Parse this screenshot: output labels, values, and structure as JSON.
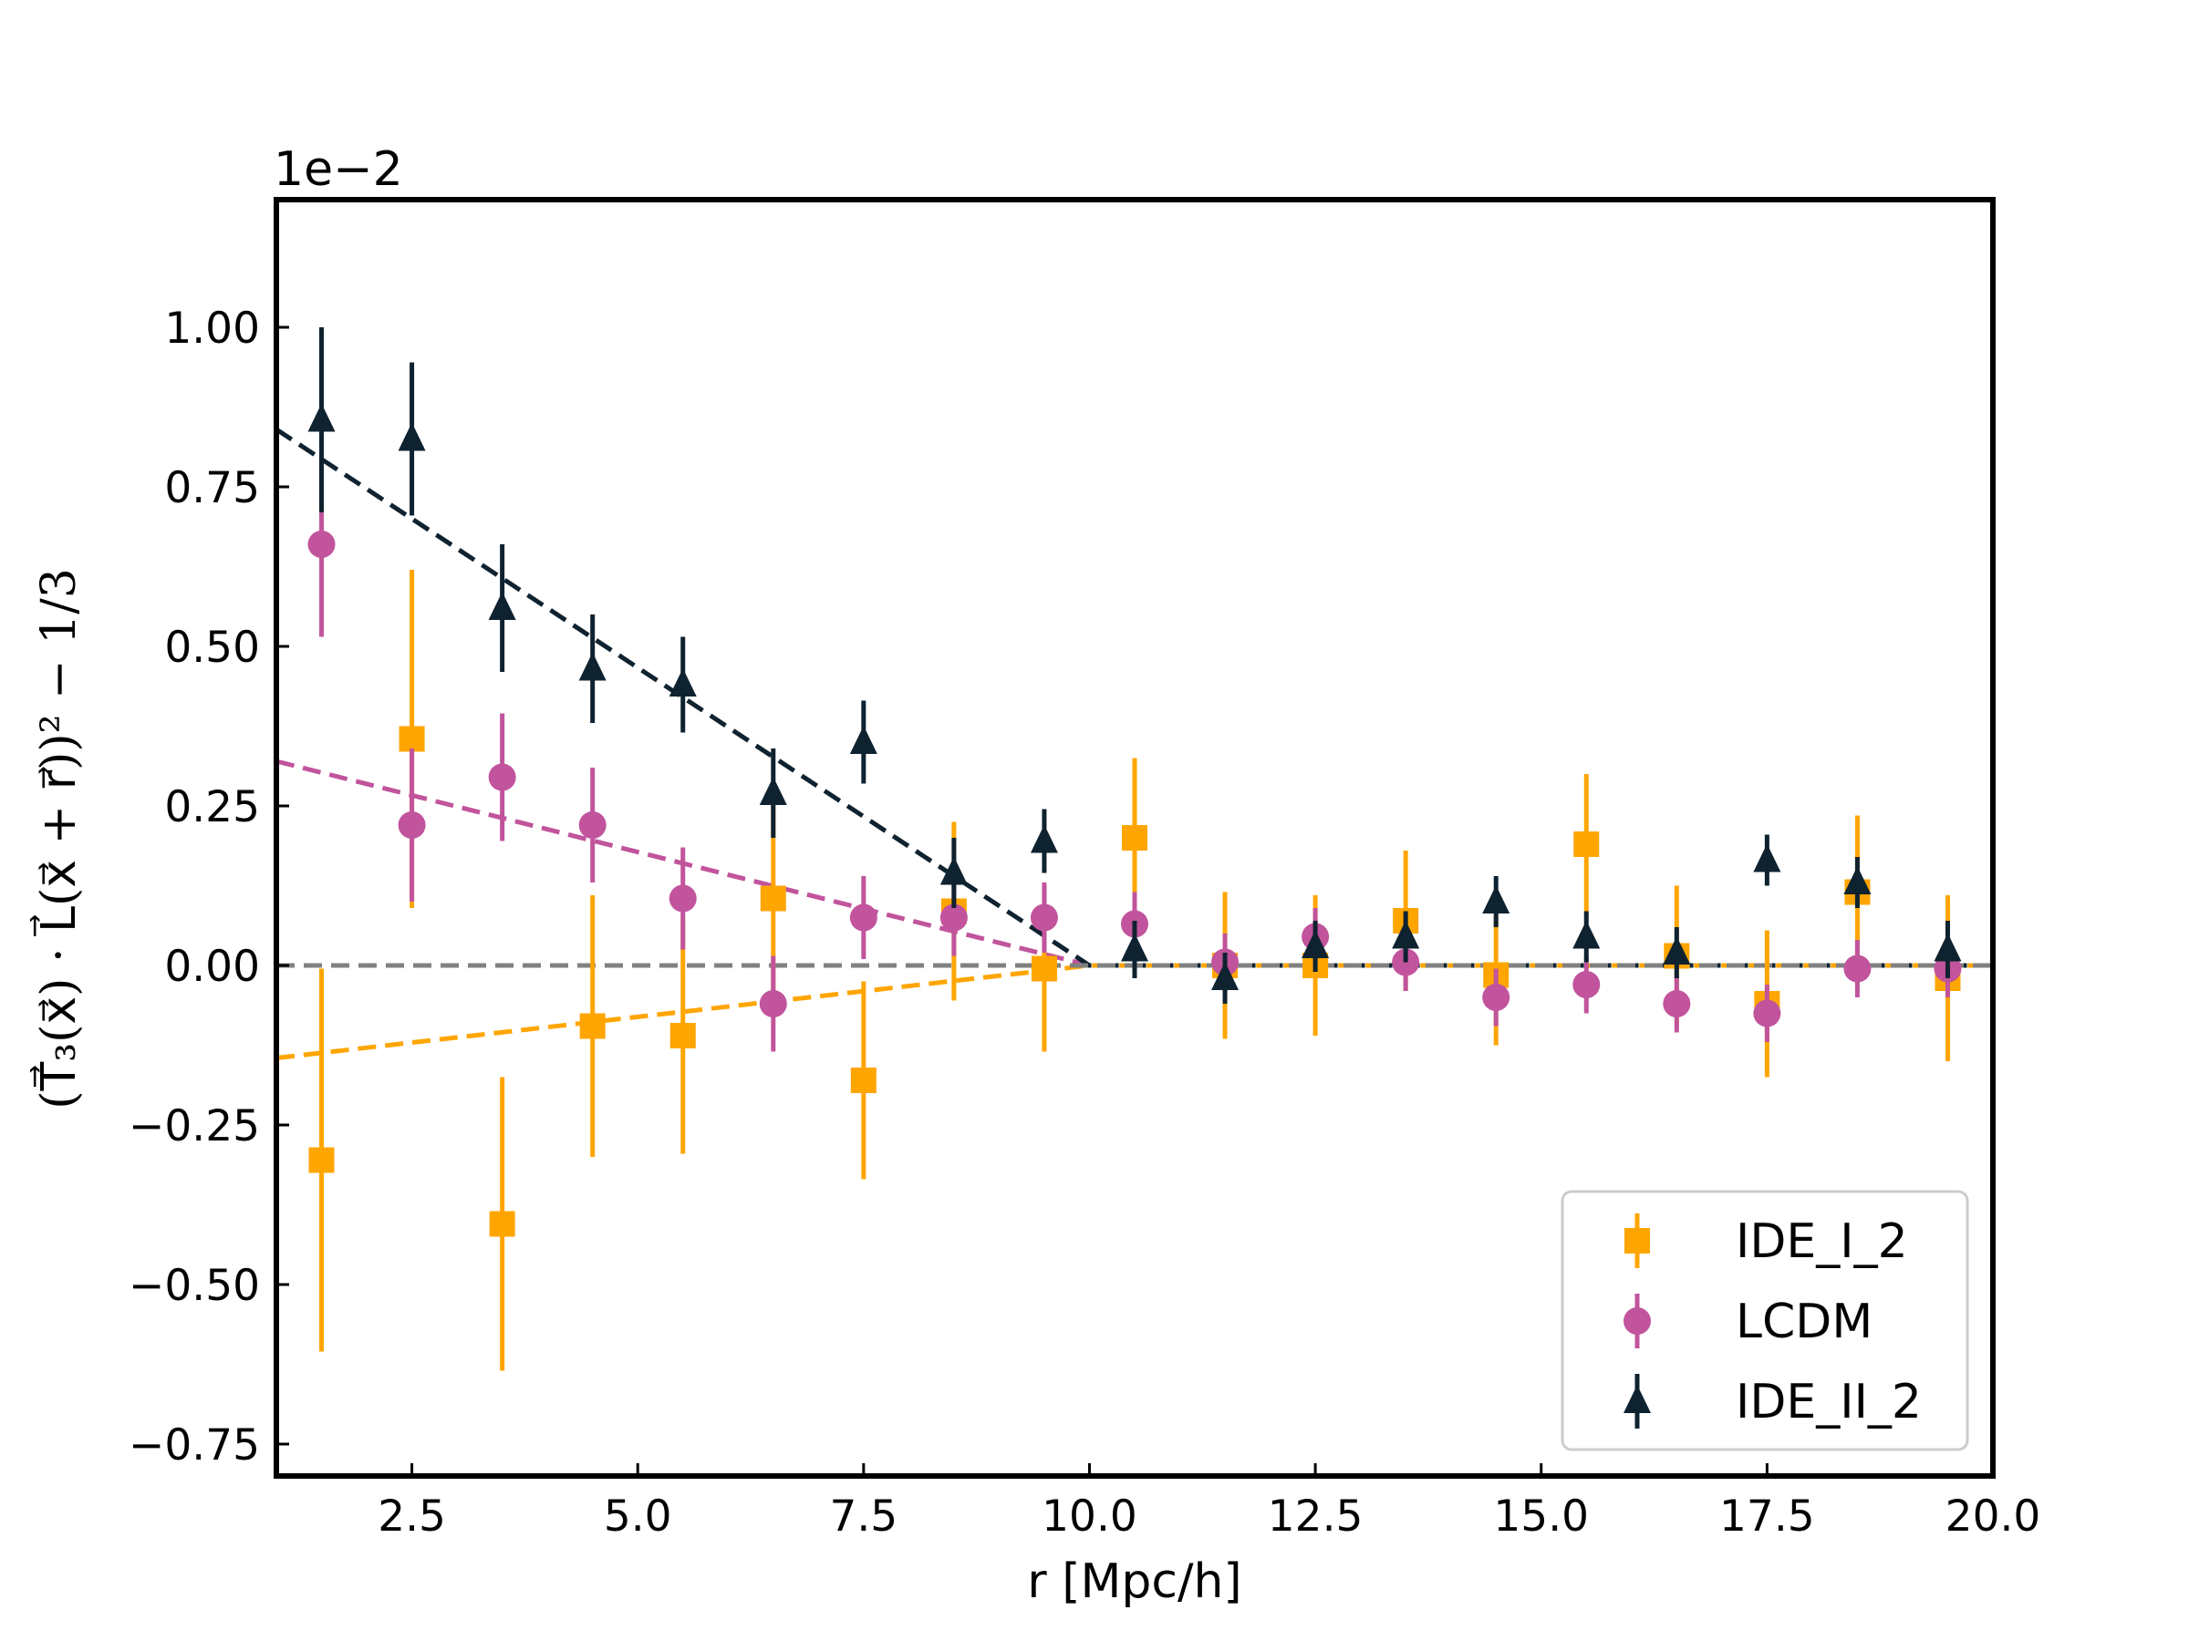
{
  "chart_data": {
    "type": "scatter",
    "title": "",
    "xlabel": "r [Mpc/h]",
    "ylabel": "(T⃗₃(x⃗) · L⃗(x⃗ + r⃗))² − 1/3",
    "y_offset_label": "1e−2",
    "xlim": [
      1.0,
      20.0
    ],
    "ylim": [
      -0.8,
      1.2
    ],
    "xticks": [
      2.5,
      5.0,
      7.5,
      10.0,
      12.5,
      15.0,
      17.5,
      20.0
    ],
    "xtick_labels": [
      "2.5",
      "5.0",
      "7.5",
      "10.0",
      "12.5",
      "15.0",
      "17.5",
      "20.0"
    ],
    "yticks": [
      -0.75,
      -0.5,
      -0.25,
      0.0,
      0.25,
      0.5,
      0.75,
      1.0
    ],
    "ytick_labels": [
      "−0.75",
      "−0.50",
      "−0.25",
      "0.00",
      "0.25",
      "0.50",
      "0.75",
      "1.00"
    ],
    "legend_position": "lower-right",
    "x": [
      1.5,
      2.5,
      3.5,
      4.5,
      5.5,
      6.5,
      7.5,
      8.5,
      9.5,
      10.5,
      11.5,
      12.5,
      13.5,
      14.5,
      15.5,
      16.5,
      17.5,
      18.5,
      19.5
    ],
    "series": [
      {
        "name": "IDE_I_2",
        "marker": "square",
        "color": "#ffa500",
        "values": [
          -0.305,
          0.355,
          -0.405,
          -0.095,
          -0.11,
          0.105,
          -0.18,
          0.085,
          -0.005,
          0.2,
          0.0,
          0.0,
          0.07,
          -0.015,
          0.19,
          0.015,
          -0.06,
          0.115,
          -0.02
        ],
        "errors": [
          0.3,
          0.265,
          0.23,
          0.205,
          0.185,
          0.155,
          0.155,
          0.14,
          0.13,
          0.125,
          0.115,
          0.11,
          0.11,
          0.11,
          0.11,
          0.11,
          0.115,
          0.12,
          0.13
        ]
      },
      {
        "name": "LCDM",
        "marker": "circle",
        "color": "#c1549c",
        "values": [
          0.66,
          0.22,
          0.295,
          0.22,
          0.105,
          -0.06,
          0.075,
          0.075,
          0.075,
          0.065,
          0.005,
          0.045,
          0.005,
          -0.05,
          -0.03,
          -0.06,
          -0.075,
          -0.005,
          -0.005
        ],
        "errors": [
          0.145,
          0.12,
          0.1,
          0.09,
          0.08,
          0.075,
          0.065,
          0.06,
          0.055,
          0.05,
          0.045,
          0.045,
          0.045,
          0.045,
          0.045,
          0.045,
          0.045,
          0.045,
          0.045
        ]
      },
      {
        "name": "IDE_II_2",
        "marker": "triangle",
        "color": "#0f2230",
        "values": [
          0.855,
          0.825,
          0.56,
          0.465,
          0.44,
          0.27,
          0.35,
          0.145,
          0.195,
          0.025,
          -0.02,
          0.03,
          0.045,
          0.1,
          0.045,
          0.02,
          0.165,
          0.13,
          0.025
        ],
        "errors": [
          0.145,
          0.12,
          0.1,
          0.085,
          0.075,
          0.07,
          0.065,
          0.055,
          0.05,
          0.045,
          0.04,
          0.04,
          0.04,
          0.04,
          0.04,
          0.04,
          0.04,
          0.04,
          0.045
        ]
      }
    ],
    "fit_lines": [
      {
        "name": "IDE_I_2 fit",
        "color": "#ffa500",
        "x": [
          1.0,
          10.0,
          20.0
        ],
        "y": [
          -0.145,
          0.0,
          0.0
        ]
      },
      {
        "name": "LCDM fit",
        "color": "#c1549c",
        "x": [
          1.0,
          10.0,
          20.0
        ],
        "y": [
          0.32,
          0.0,
          0.0
        ]
      },
      {
        "name": "IDE_II_2 fit",
        "color": "#0f2230",
        "x": [
          1.0,
          10.0,
          20.0
        ],
        "y": [
          0.84,
          0.0,
          0.0
        ]
      },
      {
        "name": "zero line",
        "color": "#808080",
        "x": [
          1.0,
          20.0
        ],
        "y": [
          0.0,
          0.0
        ]
      }
    ]
  }
}
